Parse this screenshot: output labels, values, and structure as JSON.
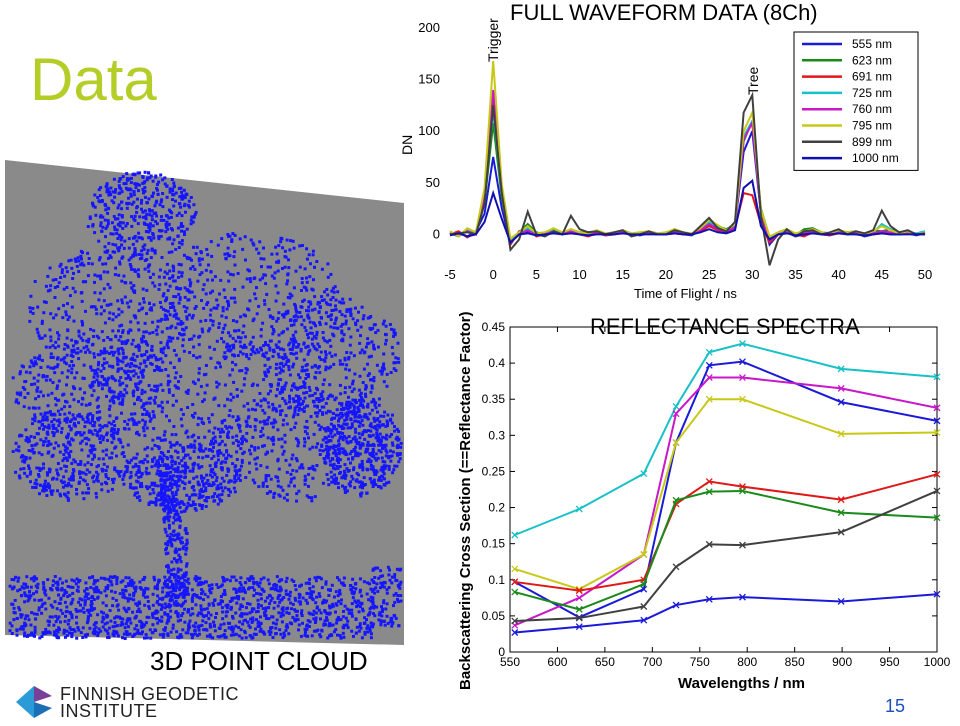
{
  "slide": {
    "title": "Data",
    "point_cloud_caption": "3D POINT CLOUD",
    "page_number": "15",
    "logo": {
      "line1": "FINNISH GEODETIC",
      "line2": "INSTITUTE",
      "colors": [
        "#2a9bd6",
        "#7a3f98",
        "#1b6fb5"
      ]
    }
  },
  "chart_data": [
    {
      "type": "line",
      "title": "FULL WAVEFORM DATA (8Ch)",
      "xlabel": "Time of Flight / ns",
      "ylabel": "DN",
      "xlim": [
        -5,
        50
      ],
      "ylim": [
        -20,
        200
      ],
      "xticks": [
        -5,
        0,
        5,
        10,
        15,
        20,
        25,
        30,
        35,
        40,
        45,
        50
      ],
      "yticks": [
        0,
        50,
        100,
        150,
        200
      ],
      "annotations": [
        {
          "text": "Trigger",
          "x": 0
        },
        {
          "text": "Tree",
          "x": 30
        }
      ],
      "legend_position": "top-right",
      "x": [
        -5,
        -4,
        -3,
        -2,
        -1,
        0,
        1,
        2,
        3,
        4,
        5,
        6,
        7,
        8,
        9,
        10,
        11,
        12,
        13,
        14,
        15,
        16,
        17,
        18,
        19,
        20,
        21,
        22,
        23,
        24,
        25,
        26,
        27,
        28,
        29,
        30,
        31,
        32,
        33,
        34,
        35,
        36,
        37,
        38,
        39,
        40,
        41,
        42,
        43,
        44,
        45,
        46,
        47,
        48,
        49,
        50
      ],
      "series": [
        {
          "name": "555 nm",
          "color": "#1a1ad8",
          "values": [
            0,
            2,
            -2,
            3,
            20,
            75,
            25,
            -8,
            0,
            3,
            0,
            -1,
            2,
            0,
            3,
            1,
            0,
            2,
            -1,
            0,
            2,
            0,
            -1,
            1,
            0,
            0,
            2,
            0,
            -1,
            4,
            10,
            5,
            2,
            8,
            80,
            100,
            20,
            -10,
            0,
            2,
            -2,
            0,
            3,
            0,
            -1,
            2,
            0,
            1,
            -2,
            0,
            2,
            0,
            0,
            1,
            -1,
            1
          ]
        },
        {
          "name": "623 nm",
          "color": "#1a8a1a",
          "values": [
            1,
            -2,
            4,
            0,
            30,
            108,
            35,
            -5,
            2,
            10,
            2,
            0,
            4,
            0,
            5,
            2,
            2,
            3,
            0,
            2,
            4,
            1,
            0,
            3,
            1,
            1,
            5,
            2,
            0,
            6,
            15,
            8,
            5,
            10,
            90,
            110,
            25,
            -3,
            2,
            5,
            -1,
            5,
            6,
            2,
            1,
            4,
            2,
            3,
            0,
            4,
            3,
            5,
            2,
            3,
            0,
            2
          ]
        },
        {
          "name": "691 nm",
          "color": "#e01818",
          "values": [
            0,
            3,
            -3,
            2,
            35,
            135,
            40,
            -10,
            3,
            5,
            -2,
            0,
            4,
            0,
            2,
            0,
            -2,
            1,
            -1,
            0,
            2,
            -1,
            0,
            1,
            0,
            0,
            1,
            0,
            0,
            3,
            8,
            4,
            2,
            6,
            40,
            38,
            10,
            -8,
            0,
            1,
            0,
            -2,
            2,
            0,
            -1,
            1,
            2,
            0,
            -1,
            0,
            1,
            2,
            0,
            1,
            0,
            0
          ]
        },
        {
          "name": "725 nm",
          "color": "#18c0c8",
          "values": [
            2,
            -1,
            5,
            1,
            40,
            120,
            40,
            -5,
            1,
            6,
            0,
            1,
            5,
            1,
            4,
            1,
            0,
            3,
            0,
            1,
            3,
            0,
            1,
            2,
            0,
            1,
            4,
            1,
            0,
            5,
            12,
            7,
            3,
            9,
            95,
            110,
            22,
            -5,
            1,
            3,
            0,
            2,
            4,
            1,
            0,
            3,
            1,
            2,
            -1,
            2,
            10,
            5,
            0,
            2,
            1,
            3
          ]
        },
        {
          "name": "760 nm",
          "color": "#c818c8",
          "values": [
            1,
            0,
            3,
            0,
            38,
            140,
            42,
            -8,
            0,
            4,
            -1,
            0,
            3,
            0,
            3,
            0,
            -1,
            2,
            0,
            1,
            2,
            0,
            0,
            1,
            0,
            0,
            2,
            0,
            0,
            4,
            10,
            5,
            2,
            7,
            92,
            108,
            20,
            -6,
            0,
            2,
            -1,
            1,
            3,
            0,
            0,
            2,
            0,
            1,
            -1,
            1,
            3,
            2,
            0,
            1,
            0,
            1
          ]
        },
        {
          "name": "795 nm",
          "color": "#c8c818",
          "values": [
            3,
            -2,
            6,
            2,
            45,
            168,
            48,
            -4,
            2,
            8,
            1,
            2,
            6,
            2,
            5,
            2,
            1,
            4,
            1,
            2,
            4,
            1,
            2,
            3,
            1,
            2,
            5,
            2,
            1,
            6,
            14,
            9,
            4,
            10,
            100,
            118,
            24,
            -2,
            2,
            5,
            1,
            3,
            5,
            2,
            1,
            4,
            2,
            3,
            0,
            3,
            8,
            4,
            1,
            3,
            0,
            2
          ]
        },
        {
          "name": "899 nm",
          "color": "#404040",
          "values": [
            0,
            1,
            2,
            0,
            30,
            125,
            40,
            -15,
            -5,
            22,
            0,
            -2,
            3,
            0,
            18,
            5,
            2,
            3,
            0,
            2,
            4,
            -2,
            0,
            3,
            0,
            0,
            4,
            2,
            0,
            8,
            16,
            6,
            3,
            12,
            118,
            135,
            18,
            -30,
            -5,
            5,
            -2,
            3,
            4,
            0,
            2,
            5,
            0,
            3,
            1,
            4,
            23,
            8,
            2,
            4,
            0,
            1
          ]
        },
        {
          "name": "1000 nm",
          "color": "#1010b0",
          "values": [
            -1,
            1,
            -2,
            0,
            12,
            40,
            15,
            -8,
            0,
            1,
            -1,
            0,
            1,
            0,
            1,
            0,
            -1,
            0,
            0,
            0,
            1,
            0,
            0,
            0,
            0,
            0,
            1,
            0,
            0,
            2,
            5,
            2,
            1,
            4,
            45,
            52,
            8,
            -5,
            0,
            1,
            -1,
            0,
            1,
            0,
            0,
            1,
            0,
            0,
            -1,
            0,
            1,
            0,
            0,
            0,
            0,
            0
          ]
        }
      ]
    },
    {
      "type": "line",
      "title": "REFLECTANCE SPECTRA",
      "xlabel": "Wavelengths / nm",
      "ylabel": "Backscattering Cross Section (==Reflectance Factor)",
      "xlim": [
        550,
        1000
      ],
      "ylim": [
        0,
        0.45
      ],
      "xticks": [
        550,
        600,
        650,
        700,
        750,
        800,
        850,
        900,
        950,
        1000
      ],
      "yticks": [
        0,
        0.05,
        0.1,
        0.15,
        0.2,
        0.25,
        0.3,
        0.35,
        0.4,
        0.45
      ],
      "x": [
        555,
        623,
        691,
        725,
        760,
        795,
        899,
        1000
      ],
      "series": [
        {
          "color": "#18c0c8",
          "values": [
            0.162,
            0.198,
            0.247,
            0.34,
            0.415,
            0.427,
            0.392,
            0.381
          ]
        },
        {
          "color": "#1a1ad8",
          "values": [
            0.097,
            0.048,
            0.087,
            0.29,
            0.397,
            0.402,
            0.346,
            0.32
          ]
        },
        {
          "color": "#c818c8",
          "values": [
            0.037,
            0.075,
            0.135,
            0.33,
            0.38,
            0.38,
            0.365,
            0.338
          ]
        },
        {
          "color": "#c8c818",
          "values": [
            0.115,
            0.087,
            0.135,
            0.29,
            0.35,
            0.35,
            0.302,
            0.304
          ]
        },
        {
          "color": "#e01818",
          "values": [
            0.097,
            0.085,
            0.1,
            0.205,
            0.236,
            0.229,
            0.211,
            0.246
          ]
        },
        {
          "color": "#1a8a1a",
          "values": [
            0.083,
            0.059,
            0.094,
            0.21,
            0.222,
            0.223,
            0.193,
            0.186
          ]
        },
        {
          "color": "#404040",
          "values": [
            0.043,
            0.047,
            0.063,
            0.118,
            0.149,
            0.148,
            0.166,
            0.223
          ]
        },
        {
          "color": "#1a1ad8",
          "values": [
            0.027,
            0.035,
            0.044,
            0.065,
            0.073,
            0.076,
            0.07,
            0.08
          ]
        }
      ]
    }
  ]
}
